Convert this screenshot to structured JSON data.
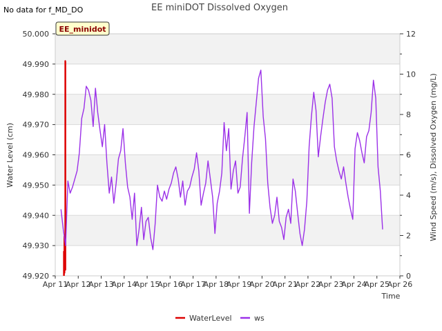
{
  "chart_data": {
    "type": "line",
    "title": "EE miniDOT Dissolved Oxygen",
    "no_data_note": "No data for f_MD_DO",
    "site_badge": "EE_minidot",
    "xlabel": "Time",
    "ylabel_left": "Water Level (cm)",
    "ylabel_right": "Wind Speed (m/s), Dissolved Oxygen (mg/L)",
    "x_ticks": [
      "Apr 11",
      "Apr 12",
      "Apr 13",
      "Apr 14",
      "Apr 15",
      "Apr 16",
      "Apr 17",
      "Apr 18",
      "Apr 19",
      "Apr 20",
      "Apr 21",
      "Apr 22",
      "Apr 23",
      "Apr 24",
      "Apr 25",
      "Apr 26"
    ],
    "xlim": [
      11,
      26
    ],
    "ylim_left": [
      49.92,
      50.0
    ],
    "yticks_left": [
      "49.920",
      "49.930",
      "49.940",
      "49.950",
      "49.960",
      "49.970",
      "49.980",
      "49.990",
      "50.000"
    ],
    "ylim_right": [
      0,
      12
    ],
    "yticks_right": [
      "0",
      "2",
      "4",
      "6",
      "8",
      "10",
      "12"
    ],
    "grid": true,
    "legend_position": "bottom-center",
    "series": [
      {
        "name": "WaterLevel",
        "axis": "left",
        "color": "#dd0000",
        "x": [
          11.38,
          11.38,
          11.4,
          11.4,
          11.44,
          11.44,
          11.46
        ],
        "y": [
          49.92,
          49.928,
          49.921,
          49.933,
          49.922,
          49.991,
          49.991
        ]
      },
      {
        "name": "ws",
        "axis": "right",
        "color": "#9b30e8",
        "x": [
          11.25,
          11.35,
          11.45,
          11.55,
          11.65,
          11.75,
          11.85,
          11.95,
          12.05,
          12.15,
          12.25,
          12.35,
          12.45,
          12.55,
          12.65,
          12.75,
          12.85,
          12.95,
          13.05,
          13.15,
          13.25,
          13.35,
          13.45,
          13.55,
          13.65,
          13.75,
          13.85,
          13.95,
          14.05,
          14.15,
          14.25,
          14.35,
          14.45,
          14.55,
          14.65,
          14.75,
          14.85,
          14.95,
          15.05,
          15.15,
          15.25,
          15.35,
          15.45,
          15.55,
          15.65,
          15.75,
          15.85,
          15.95,
          16.05,
          16.15,
          16.25,
          16.35,
          16.45,
          16.55,
          16.65,
          16.75,
          16.85,
          16.95,
          17.05,
          17.15,
          17.25,
          17.35,
          17.45,
          17.55,
          17.65,
          17.75,
          17.85,
          17.95,
          18.05,
          18.15,
          18.25,
          18.35,
          18.45,
          18.55,
          18.65,
          18.75,
          18.85,
          18.95,
          19.05,
          19.15,
          19.25,
          19.35,
          19.45,
          19.55,
          19.65,
          19.75,
          19.85,
          19.95,
          20.05,
          20.15,
          20.25,
          20.35,
          20.45,
          20.55,
          20.65,
          20.75,
          20.85,
          20.95,
          21.05,
          21.15,
          21.25,
          21.35,
          21.45,
          21.55,
          21.65,
          21.75,
          21.85,
          21.95,
          22.05,
          22.15,
          22.25,
          22.35,
          22.45,
          22.55,
          22.65,
          22.75,
          22.85,
          22.95,
          23.05,
          23.15,
          23.25,
          23.35,
          23.45,
          23.55,
          23.65,
          23.75,
          23.85,
          23.95,
          24.05,
          24.15,
          24.25,
          24.35,
          24.45,
          24.55,
          24.65,
          24.75,
          24.85,
          24.95,
          25.05,
          25.15,
          25.25
        ],
        "y": [
          3.3,
          2.3,
          1.5,
          4.7,
          4.1,
          4.4,
          4.8,
          5.2,
          6.1,
          7.8,
          8.3,
          9.4,
          9.2,
          8.7,
          7.4,
          9.3,
          8.1,
          7.2,
          6.4,
          7.5,
          5.6,
          4.1,
          4.9,
          3.6,
          4.6,
          5.8,
          6.2,
          7.3,
          5.6,
          4.4,
          3.9,
          2.8,
          4.1,
          1.5,
          2.3,
          3.4,
          1.8,
          2.7,
          2.9,
          1.9,
          1.3,
          2.6,
          4.5,
          3.9,
          3.7,
          4.2,
          3.8,
          4.3,
          4.6,
          5.1,
          5.4,
          4.8,
          3.9,
          4.7,
          3.5,
          4.2,
          4.4,
          4.9,
          5.3,
          6.1,
          5.2,
          3.5,
          4.1,
          4.6,
          5.7,
          4.8,
          3.9,
          2.1,
          3.6,
          4.2,
          5.1,
          7.6,
          6.2,
          7.3,
          4.3,
          5.2,
          5.7,
          4.1,
          4.4,
          5.8,
          6.9,
          8.1,
          3.1,
          5.6,
          7.4,
          8.6,
          9.8,
          10.2,
          7.9,
          6.8,
          4.6,
          3.4,
          2.6,
          3.0,
          3.9,
          2.7,
          2.4,
          1.8,
          2.9,
          3.3,
          2.6,
          4.8,
          4.2,
          3.1,
          2.1,
          1.5,
          2.3,
          3.7,
          6.4,
          7.9,
          9.1,
          8.2,
          5.9,
          6.9,
          7.8,
          8.6,
          9.2,
          9.5,
          8.8,
          6.4,
          5.7,
          5.2,
          4.8,
          5.4,
          4.6,
          3.9,
          3.3,
          2.8,
          6.3,
          7.1,
          6.7,
          6.1,
          5.6,
          6.9,
          7.2,
          8.1,
          9.7,
          8.8,
          5.4,
          4.2,
          2.3
        ]
      }
    ]
  },
  "legend": {
    "items": [
      {
        "label": "WaterLevel",
        "color": "#dd0000"
      },
      {
        "label": "ws",
        "color": "#9b30e8"
      }
    ]
  },
  "style": {
    "band_color": "#f2f2f2",
    "grid_color": "#d9d9d9",
    "badge_fill": "#ffffcc",
    "badge_border": "#333333"
  }
}
